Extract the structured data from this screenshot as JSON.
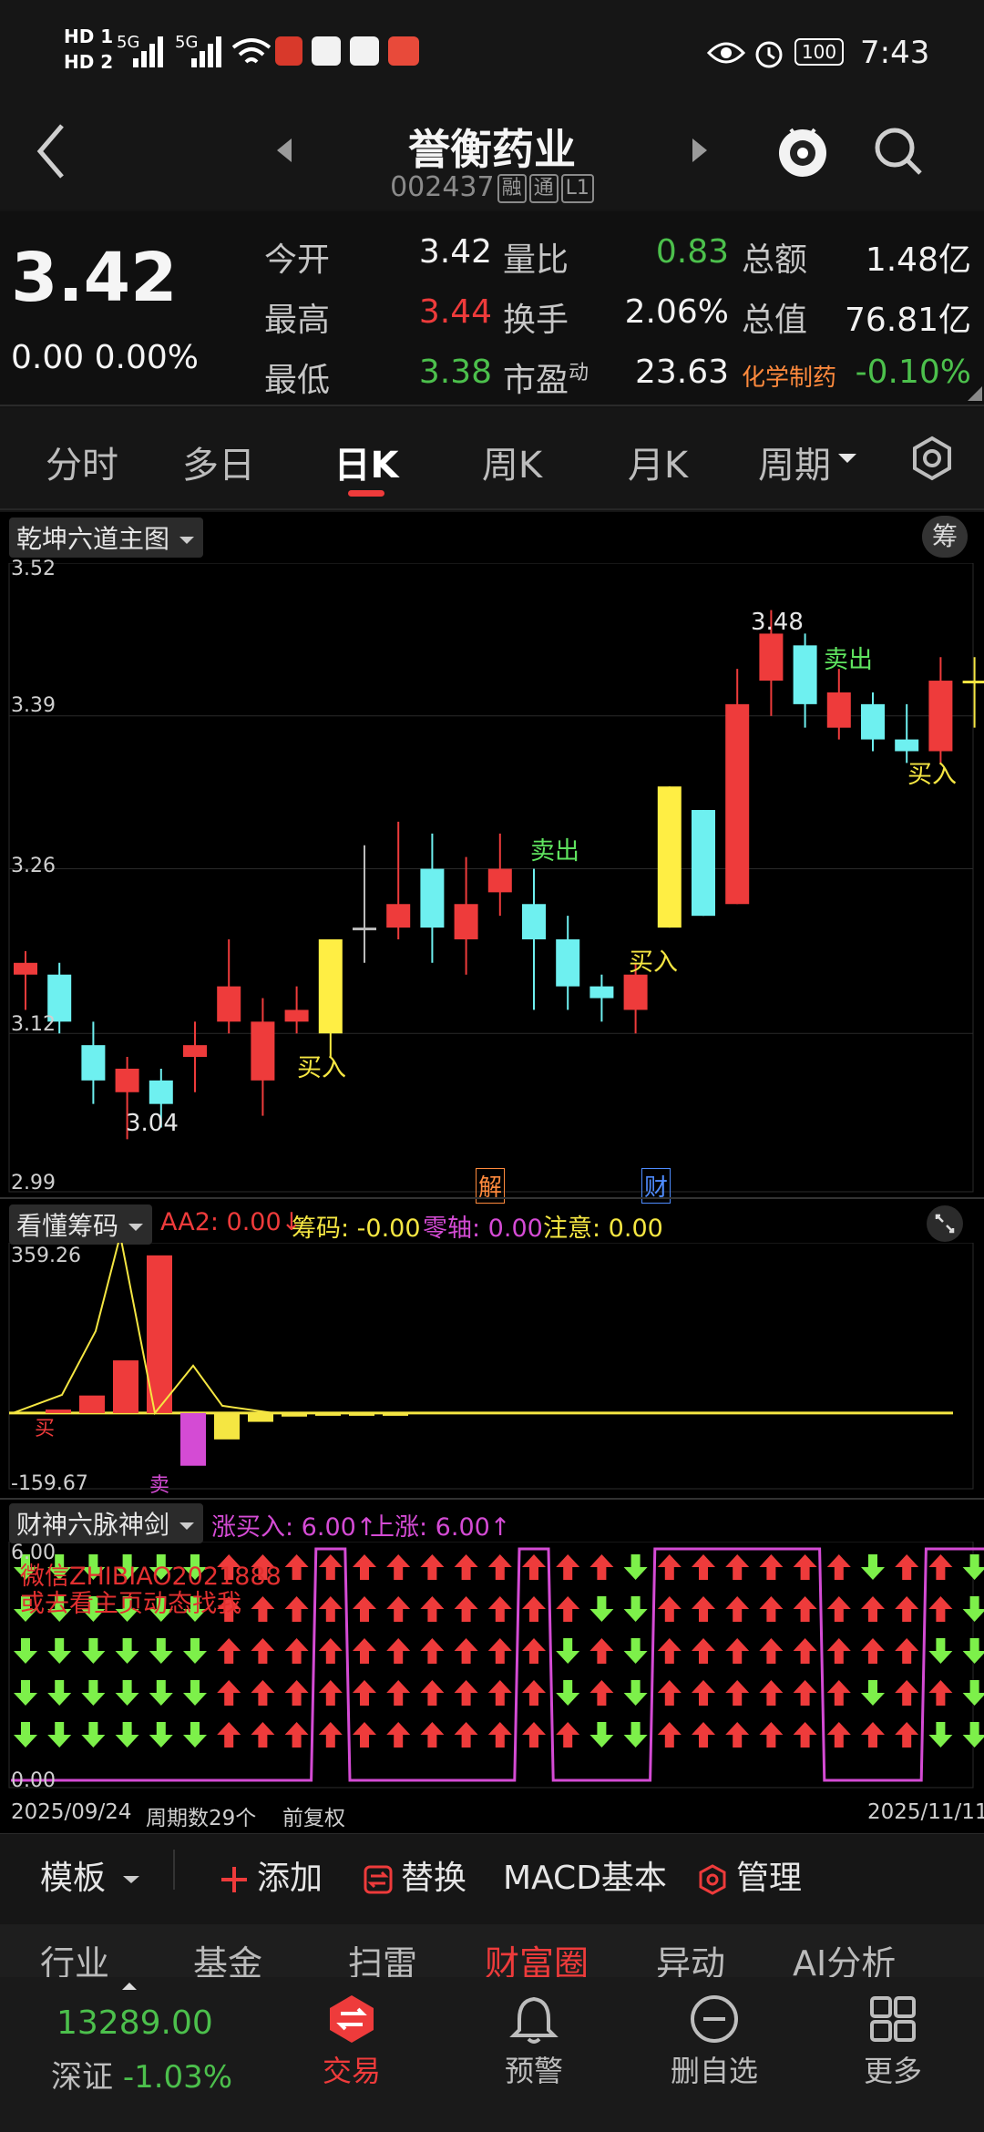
{
  "status_bar": {
    "sim1": "HD 1",
    "sim2": "HD 2",
    "net1": "5G",
    "net2": "5G",
    "battery": "100",
    "time": "7:43"
  },
  "header": {
    "name": "誉衡药业",
    "code": "002437",
    "tags": [
      "融",
      "通",
      "L1"
    ]
  },
  "quote": {
    "price": "3.42",
    "change": "0.00  0.00%",
    "rows": [
      [
        {
          "l": "今开",
          "v": "3.42",
          "c": "white"
        },
        {
          "l": "量比",
          "v": "0.83",
          "c": "green"
        },
        {
          "l": "总额",
          "v": "1.48亿",
          "c": "white"
        }
      ],
      [
        {
          "l": "最高",
          "v": "3.44",
          "c": "red"
        },
        {
          "l": "换手",
          "v": "2.06%",
          "c": "white"
        },
        {
          "l": "总值",
          "v": "76.81亿",
          "c": "white"
        }
      ],
      [
        {
          "l": "最低",
          "v": "3.38",
          "c": "green"
        },
        {
          "l": "市盈",
          "sup": "动",
          "v": "23.63",
          "c": "white"
        },
        {
          "l": "化学制药",
          "v": "-0.10%",
          "c": "green"
        }
      ]
    ]
  },
  "tabs": [
    "分时",
    "多日",
    "日K",
    "周K",
    "月K",
    "周期"
  ],
  "active_tab": "日K",
  "main_chart": {
    "indicator": "乾坤六道主图",
    "chip_button": "筹",
    "y_ticks": [
      "3.52",
      "3.39",
      "3.26",
      "3.12",
      "2.99"
    ],
    "high_label": "3.48",
    "low_label": "3.04",
    "signals": [
      {
        "text": "买入",
        "color": "#f5e642"
      },
      {
        "text": "卖出",
        "color": "#5fe35f"
      },
      {
        "text": "买入",
        "color": "#f5e642"
      },
      {
        "text": "卖出",
        "color": "#5fe35f"
      },
      {
        "text": "买入",
        "color": "#f5e642"
      }
    ],
    "event_tags": [
      {
        "text": "解",
        "color": "#ff8a3d"
      },
      {
        "text": "财",
        "color": "#4f8cff"
      }
    ]
  },
  "chart_data": {
    "type": "candlestick",
    "ylim": [
      2.99,
      3.52
    ],
    "candles": [
      {
        "o": 3.17,
        "c": 3.18,
        "h": 3.19,
        "l": 3.14,
        "up": true
      },
      {
        "o": 3.17,
        "c": 3.13,
        "h": 3.18,
        "l": 3.12,
        "up": false
      },
      {
        "o": 3.11,
        "c": 3.08,
        "h": 3.13,
        "l": 3.06,
        "up": false
      },
      {
        "o": 3.07,
        "c": 3.09,
        "h": 3.1,
        "l": 3.03,
        "up": true
      },
      {
        "o": 3.08,
        "c": 3.06,
        "h": 3.09,
        "l": 3.04,
        "up": false
      },
      {
        "o": 3.1,
        "c": 3.11,
        "h": 3.13,
        "l": 3.07,
        "up": true
      },
      {
        "o": 3.13,
        "c": 3.16,
        "h": 3.2,
        "l": 3.12,
        "up": true
      },
      {
        "o": 3.08,
        "c": 3.13,
        "h": 3.15,
        "l": 3.05,
        "up": true
      },
      {
        "o": 3.13,
        "c": 3.14,
        "h": 3.16,
        "l": 3.12,
        "up": true
      },
      {
        "o": 3.12,
        "c": 3.2,
        "h": 3.2,
        "l": 3.1,
        "up": true,
        "yellow": true
      },
      {
        "o": 3.21,
        "c": 3.21,
        "h": 3.28,
        "l": 3.18,
        "up": true,
        "doji": true
      },
      {
        "o": 3.21,
        "c": 3.23,
        "h": 3.3,
        "l": 3.2,
        "up": true
      },
      {
        "o": 3.26,
        "c": 3.21,
        "h": 3.29,
        "l": 3.18,
        "up": false
      },
      {
        "o": 3.2,
        "c": 3.23,
        "h": 3.27,
        "l": 3.17,
        "up": true
      },
      {
        "o": 3.24,
        "c": 3.26,
        "h": 3.29,
        "l": 3.22,
        "up": true
      },
      {
        "o": 3.23,
        "c": 3.2,
        "h": 3.26,
        "l": 3.14,
        "up": false
      },
      {
        "o": 3.2,
        "c": 3.16,
        "h": 3.22,
        "l": 3.14,
        "up": false
      },
      {
        "o": 3.16,
        "c": 3.15,
        "h": 3.17,
        "l": 3.13,
        "up": false
      },
      {
        "o": 3.14,
        "c": 3.17,
        "h": 3.18,
        "l": 3.12,
        "up": true
      },
      {
        "o": 3.21,
        "c": 3.33,
        "h": 3.33,
        "l": 3.21,
        "up": true,
        "yellow": true
      },
      {
        "o": 3.31,
        "c": 3.22,
        "h": 3.31,
        "l": 3.22,
        "up": false
      },
      {
        "o": 3.23,
        "c": 3.4,
        "h": 3.43,
        "l": 3.23,
        "up": true
      },
      {
        "o": 3.42,
        "c": 3.46,
        "h": 3.48,
        "l": 3.39,
        "up": true
      },
      {
        "o": 3.45,
        "c": 3.4,
        "h": 3.46,
        "l": 3.38,
        "up": false
      },
      {
        "o": 3.38,
        "c": 3.41,
        "h": 3.43,
        "l": 3.37,
        "up": true
      },
      {
        "o": 3.4,
        "c": 3.37,
        "h": 3.41,
        "l": 3.36,
        "up": false
      },
      {
        "o": 3.37,
        "c": 3.36,
        "h": 3.4,
        "l": 3.35,
        "up": false
      },
      {
        "o": 3.36,
        "c": 3.42,
        "h": 3.44,
        "l": 3.35,
        "up": true
      },
      {
        "o": 3.42,
        "c": 3.42,
        "h": 3.44,
        "l": 3.38,
        "up": true,
        "doji": true,
        "last": true
      }
    ],
    "chip_histogram": {
      "ymax": 359.26,
      "ymin": -159.67,
      "values": [
        8,
        40,
        120,
        359.26,
        -120,
        -60,
        -20,
        -8,
        -4,
        -2,
        -1
      ]
    },
    "arrow_grid": {
      "rows": 5,
      "columns": [
        "d",
        "d",
        "d",
        "d",
        "d",
        "d",
        "u",
        "u",
        "u",
        "u",
        "u",
        "u",
        "u",
        "u",
        "u",
        "u",
        "d",
        "d",
        "d",
        "u",
        "u",
        "u",
        "u",
        "u",
        "u",
        "d",
        "u",
        "u",
        "d"
      ],
      "mixed_columns": {
        "16": [
          "u",
          "u",
          "d",
          "d",
          "u"
        ],
        "17": [
          "u",
          "d",
          "u",
          "u",
          "d"
        ],
        "25": [
          "d",
          "u",
          "u",
          "d",
          "u"
        ],
        "27": [
          "u",
          "u",
          "d",
          "u",
          "d"
        ]
      }
    },
    "line_states": [
      0,
      0,
      0,
      0,
      0,
      0,
      0,
      0,
      0,
      1,
      0,
      0,
      0,
      0,
      0,
      1,
      0,
      0,
      0,
      1,
      1,
      1,
      1,
      1,
      0,
      0,
      0,
      1,
      1
    ]
  },
  "chip_panel": {
    "indicator": "看懂筹码",
    "legend": [
      {
        "text": "AA2: 0.00↓",
        "color": "#ee3b3b"
      },
      {
        "text": "筹码: -0.00",
        "color": "#f5e642"
      },
      {
        "text": "零轴: 0.00",
        "color": "#d44bd4"
      },
      {
        "text": "注意: 0.00",
        "color": "#f5e642"
      }
    ],
    "y_top": "359.26",
    "y_bottom": "-159.67",
    "buy_tag": "买",
    "sell_tag": "卖"
  },
  "sword_panel": {
    "indicator": "财神六脉神剑",
    "legend": [
      {
        "text": "涨买入: 6.00↑",
        "color": "#d44bd4"
      },
      {
        "text": "上涨: 6.00↑",
        "color": "#d44bd4"
      }
    ],
    "y_top": "6.00",
    "y_bottom": "0.00",
    "watermark_line1": "微信ZHIBIAO2021888",
    "watermark_line2": "或去看主页动态找我"
  },
  "x_axis": {
    "start": "2025/09/24",
    "period_count": "周期数29个",
    "adjust": "前复权",
    "end": "2025/11/11"
  },
  "toolbar": {
    "template": "模板",
    "add": "添加",
    "replace": "替换",
    "macd": "MACD基本",
    "manage": "管理"
  },
  "sub_nav": [
    "行业",
    "基金",
    "扫雷",
    "财富圈",
    "异动",
    "AI分析"
  ],
  "sub_nav_active": "财富圈",
  "bottom_nav": {
    "index_value": "13289.00",
    "index_name": "深证",
    "index_change": "-1.03%",
    "items": [
      "交易",
      "预警",
      "删自选",
      "更多"
    ]
  }
}
